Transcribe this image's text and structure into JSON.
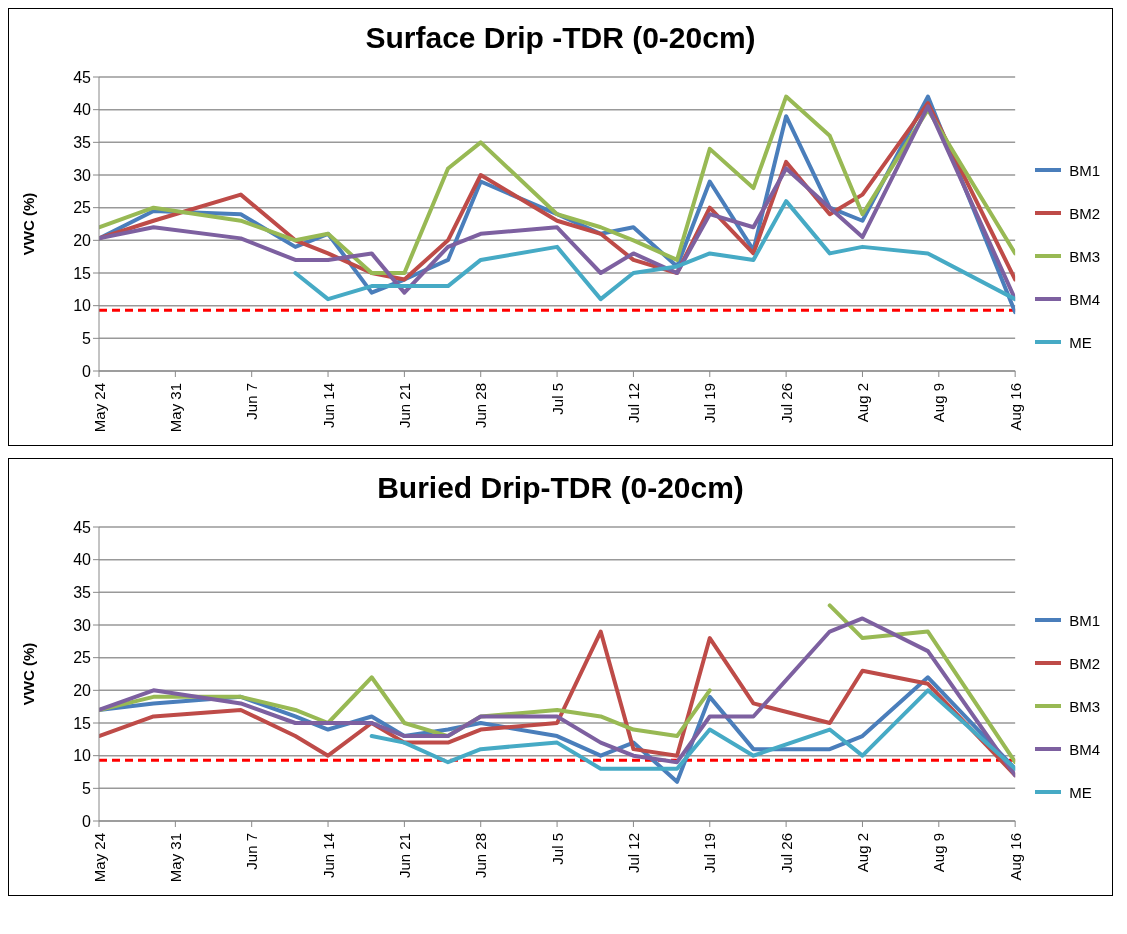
{
  "chart_data": [
    {
      "type": "line",
      "title": "Surface Drip -TDR (0-20cm)",
      "ylabel": "VWC (%)",
      "x": [
        "--05-24",
        "--05-29",
        "--06-06",
        "--06-11",
        "--06-14",
        "--06-18",
        "--06-21",
        "--06-25",
        "--06-28",
        "--07-05",
        "--07-09",
        "--07-12",
        "--07-16",
        "--07-19",
        "--07-23",
        "--07-26",
        "--07-30",
        "--08-02",
        "--08-08",
        "--08-16"
      ],
      "series": [
        {
          "name": "BM1",
          "color": "#4a7ebb",
          "values": [
            20.3,
            24.5,
            24,
            19,
            21,
            12,
            14,
            17,
            29,
            24,
            21,
            22,
            16,
            29,
            18.5,
            39,
            25,
            23,
            42,
            9
          ]
        },
        {
          "name": "BM2",
          "color": "#be4b48",
          "values": [
            20.3,
            23,
            27,
            20,
            18,
            15,
            14,
            20,
            30,
            23,
            21,
            17,
            15,
            25,
            18,
            32,
            24,
            27,
            41,
            14
          ]
        },
        {
          "name": "BM3",
          "color": "#98b954",
          "values": [
            22,
            25,
            23,
            20,
            21,
            15,
            15,
            31,
            35,
            24,
            22,
            20,
            17,
            34,
            28,
            42,
            36,
            24,
            40,
            18
          ]
        },
        {
          "name": "BM4",
          "color": "#7d60a0",
          "values": [
            20.3,
            22,
            20.3,
            17,
            17,
            18,
            12,
            19,
            21,
            22,
            15,
            18,
            15,
            24,
            22,
            31,
            25,
            20.5,
            40.5,
            11
          ]
        },
        {
          "name": "ME",
          "color": "#46aac5",
          "values": [
            null,
            null,
            null,
            15,
            11,
            13,
            13,
            13,
            17,
            19,
            11,
            15,
            16,
            18,
            17,
            26,
            18,
            19,
            18,
            11
          ]
        }
      ],
      "xlim": [
        "--05-24",
        "--08-16"
      ],
      "xticks": [
        {
          "value": "--05-24",
          "label": "May 24"
        },
        {
          "value": "--05-31",
          "label": "May 31"
        },
        {
          "value": "--06-07",
          "label": "Jun 7"
        },
        {
          "value": "--06-14",
          "label": "Jun 14"
        },
        {
          "value": "--06-21",
          "label": "Jun 21"
        },
        {
          "value": "--06-28",
          "label": "Jun 28"
        },
        {
          "value": "--07-05",
          "label": "Jul 5"
        },
        {
          "value": "--07-12",
          "label": "Jul 12"
        },
        {
          "value": "--07-19",
          "label": "Jul 19"
        },
        {
          "value": "--07-26",
          "label": "Jul 26"
        },
        {
          "value": "--08-02",
          "label": "Aug 2"
        },
        {
          "value": "--08-09",
          "label": "Aug 9"
        },
        {
          "value": "--08-16",
          "label": "Aug 16"
        }
      ],
      "ylim": [
        0,
        45
      ],
      "yticks": [
        0,
        5,
        10,
        15,
        20,
        25,
        30,
        35,
        40,
        45
      ],
      "ref_lines": [
        {
          "axis": "y",
          "value": 9.3,
          "color": "#ff0000",
          "line_style": "dashed"
        }
      ],
      "grid": "y",
      "legend": "right",
      "marker": "none",
      "line_style": "solid"
    },
    {
      "type": "line",
      "title": "Buried Drip-TDR (0-20cm)",
      "ylabel": "VWC (%)",
      "x": [
        "--05-24",
        "--05-29",
        "--06-06",
        "--06-11",
        "--06-14",
        "--06-18",
        "--06-21",
        "--06-25",
        "--06-28",
        "--07-05",
        "--07-09",
        "--07-12",
        "--07-16",
        "--07-19",
        "--07-23",
        "--07-30",
        "--08-02",
        "--08-08",
        "--08-16"
      ],
      "series": [
        {
          "name": "BM1",
          "color": "#4a7ebb",
          "values": [
            17,
            18,
            19,
            16,
            14,
            16,
            13,
            14,
            15,
            13,
            10,
            12,
            6,
            19,
            11,
            11,
            13,
            22,
            8
          ]
        },
        {
          "name": "BM2",
          "color": "#be4b48",
          "values": [
            13,
            16,
            17,
            13,
            10,
            15,
            12,
            12,
            14,
            15,
            29,
            11,
            10,
            28,
            18,
            15,
            23,
            21,
            7
          ]
        },
        {
          "name": "BM3",
          "color": "#98b954",
          "values": [
            17,
            19,
            19,
            17,
            15,
            22,
            15,
            13,
            16,
            17,
            16,
            14,
            13,
            20,
            null,
            33,
            28,
            29,
            9
          ]
        },
        {
          "name": "BM4",
          "color": "#7d60a0",
          "values": [
            17,
            20,
            18,
            15,
            15,
            15,
            13,
            13,
            16,
            16,
            12,
            10,
            9,
            16,
            16,
            29,
            31,
            26,
            7
          ]
        },
        {
          "name": "ME",
          "color": "#46aac5",
          "values": [
            null,
            null,
            null,
            null,
            null,
            13,
            12,
            9,
            11,
            12,
            8,
            8,
            8,
            14,
            10,
            14,
            10,
            20,
            8
          ]
        }
      ],
      "xlim": [
        "--05-24",
        "--08-16"
      ],
      "xticks": [
        {
          "value": "--05-24",
          "label": "May 24"
        },
        {
          "value": "--05-31",
          "label": "May 31"
        },
        {
          "value": "--06-07",
          "label": "Jun 7"
        },
        {
          "value": "--06-14",
          "label": "Jun 14"
        },
        {
          "value": "--06-21",
          "label": "Jun 21"
        },
        {
          "value": "--06-28",
          "label": "Jun 28"
        },
        {
          "value": "--07-05",
          "label": "Jul 5"
        },
        {
          "value": "--07-12",
          "label": "Jul 12"
        },
        {
          "value": "--07-19",
          "label": "Jul 19"
        },
        {
          "value": "--07-26",
          "label": "Jul 26"
        },
        {
          "value": "--08-02",
          "label": "Aug 2"
        },
        {
          "value": "--08-09",
          "label": "Aug 9"
        },
        {
          "value": "--08-16",
          "label": "Aug 16"
        }
      ],
      "ylim": [
        0,
        45
      ],
      "yticks": [
        0,
        5,
        10,
        15,
        20,
        25,
        30,
        35,
        40,
        45
      ],
      "ref_lines": [
        {
          "axis": "y",
          "value": 9.3,
          "color": "#ff0000",
          "line_style": "dashed"
        }
      ],
      "grid": "y",
      "legend": "right",
      "marker": "none",
      "line_style": "solid"
    }
  ]
}
